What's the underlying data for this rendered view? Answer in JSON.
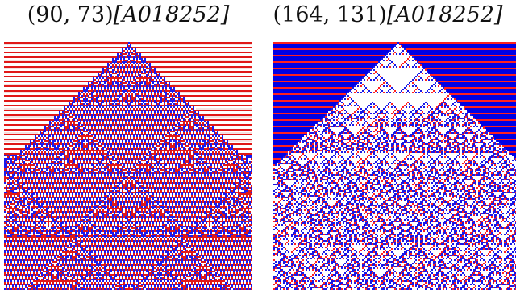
{
  "figures": [
    {
      "id": "left",
      "caption_prefix": "(90, 73)",
      "caption_tag": "[A018252]",
      "colors": {
        "background": "#ffffff",
        "c1": "#e01818",
        "c2": "#1a1aee",
        "bg_stripe_light": "#f4e0e0"
      }
    },
    {
      "id": "right",
      "caption_prefix": "(164, 131)",
      "caption_tag": "[A018252]",
      "colors": {
        "background": "#0000e6",
        "c1": "#ff2020",
        "c2": "#1818e8",
        "triangle": "#ffffff"
      }
    }
  ]
}
